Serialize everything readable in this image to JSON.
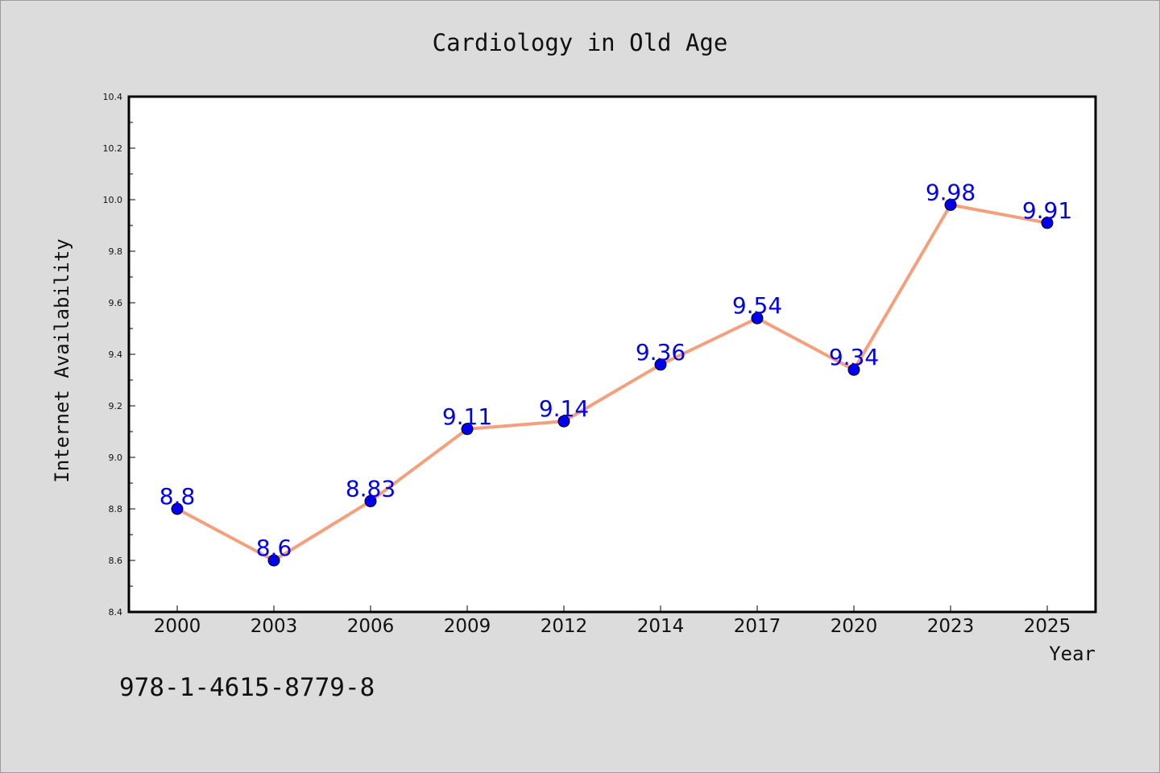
{
  "chart_data": {
    "type": "line",
    "title": "Cardiology in Old Age",
    "xlabel": "Year",
    "ylabel": "Internet Availability",
    "categories": [
      "2000",
      "2003",
      "2006",
      "2009",
      "2012",
      "2014",
      "2017",
      "2020",
      "2023",
      "2025"
    ],
    "series": [
      {
        "values": [
          8.8,
          8.6,
          8.83,
          9.11,
          9.14,
          9.36,
          9.54,
          9.34,
          9.98,
          9.91
        ],
        "labels": [
          "8.8",
          "8.6",
          "8.83",
          "9.11",
          "9.14",
          "9.36",
          "9.54",
          "9.34",
          "9.98",
          "9.91"
        ]
      }
    ],
    "yticks": [
      "8.4",
      "8.6",
      "8.8",
      "9.0",
      "9.2",
      "9.4",
      "9.6",
      "9.8",
      "10.0",
      "10.2",
      "10.4"
    ],
    "ylim": [
      8.4,
      10.4
    ],
    "grid": false,
    "line_color": "#f4a07c",
    "marker_color": "#0000ee",
    "label_color": "#0000ee",
    "background": "#dcdcdc",
    "plot_background": "#ffffff"
  },
  "footer": {
    "isbn": "978-1-4615-8779-8"
  }
}
